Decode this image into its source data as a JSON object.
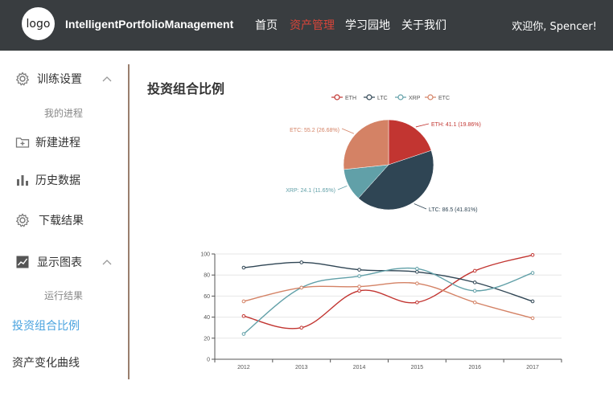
{
  "header": {
    "logo_text": "logo",
    "brand": "IntelligentPortfolioManagement",
    "nav": [
      "首页",
      "资产管理",
      "学习园地",
      "关于我们"
    ],
    "welcome": "欢迎你, Spencer!",
    "active_color": "#d9453a"
  },
  "sidebar": {
    "training_settings": "训练设置",
    "my_progress": "我的进程",
    "new_process": "新建进程",
    "history_data": "历史数据",
    "download_results": "下载结果",
    "show_charts": "显示图表",
    "run_results": "运行结果",
    "portfolio_ratio": "投资组合比例",
    "asset_curve": "资产变化曲线"
  },
  "main": {
    "title": "投资组合比例"
  },
  "chart_data": [
    {
      "type": "pie",
      "title": "",
      "legend": [
        "ETH",
        "LTC",
        "XRP",
        "ETC"
      ],
      "legend_position": "top",
      "slices": [
        {
          "name": "ETH",
          "value": 41.1,
          "percent": "19.86%",
          "label": "ETH: 41.1 (19.86%)",
          "color": "#c23531"
        },
        {
          "name": "LTC",
          "value": 86.5,
          "percent": "41.81%",
          "label": "LTC: 86.5 (41.81%)",
          "color": "#2f4554"
        },
        {
          "name": "XRP",
          "value": 24.1,
          "percent": "11.65%",
          "label": "XRP: 24.1 (11.65%)",
          "color": "#61a0a8"
        },
        {
          "name": "ETC",
          "value": 55.2,
          "percent": "26.68%",
          "label": "ETC: 55.2 (26.68%)",
          "color": "#d48265"
        }
      ]
    },
    {
      "type": "line",
      "categories": [
        "2012",
        "2013",
        "2014",
        "2015",
        "2016",
        "2017"
      ],
      "ylim": [
        0,
        100
      ],
      "yticks": [
        "0",
        "20",
        "40",
        "60",
        "80",
        "100"
      ],
      "grid": true,
      "series": [
        {
          "name": "ETH",
          "color": "#c23531",
          "values": [
            41,
            30,
            65,
            54,
            84,
            99
          ]
        },
        {
          "name": "LTC",
          "color": "#2f4554",
          "values": [
            87,
            92,
            85,
            83,
            73,
            55
          ]
        },
        {
          "name": "XRP",
          "color": "#61a0a8",
          "values": [
            24,
            68,
            79,
            86,
            65,
            82
          ]
        },
        {
          "name": "ETC",
          "color": "#d48265",
          "values": [
            55,
            68,
            69,
            72,
            54,
            39
          ]
        }
      ]
    }
  ]
}
